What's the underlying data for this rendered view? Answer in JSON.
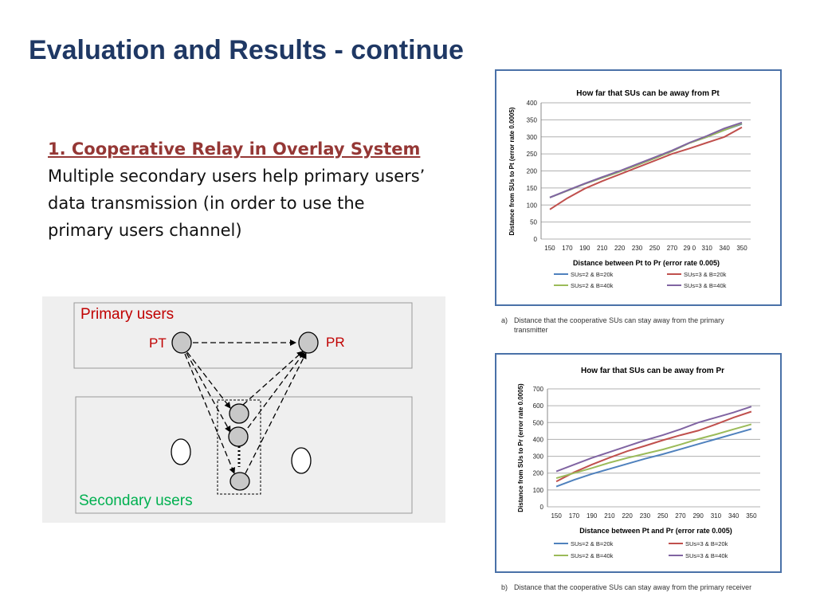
{
  "slide": {
    "title": "Evaluation and Results - continue"
  },
  "bullet": {
    "heading": "1. Cooperative Relay in Overlay System",
    "body": "Multiple secondary users help primary users’ data transmission (in order to use the primary users channel)"
  },
  "diagram": {
    "primary_label": "Primary users",
    "secondary_label": "Secondary users",
    "pt_label": "PT",
    "pr_label": "PR",
    "colors": {
      "primary_text": "#c00000",
      "secondary_text": "#00b050"
    }
  },
  "captions": {
    "a": {
      "label": "a)",
      "text": "Distance that the cooperative SUs can stay away from the primary transmitter"
    },
    "b": {
      "label": "b)",
      "text": "Distance that the cooperative SUs can stay away from the primary receiver"
    }
  },
  "chart_data": [
    {
      "type": "line",
      "title": "How far that SUs can be away from Pt",
      "xlabel": "Distance between Pt to Pr (error rate 0.005)",
      "ylabel": "Distance from SUs to Pt (error rate 0.0005)",
      "categories": [
        "150",
        "170",
        "190",
        "210",
        "220",
        "230",
        "250",
        "270",
        "29 0",
        "310",
        "340",
        "350"
      ],
      "ylim": [
        0,
        400
      ],
      "yticks": [
        0,
        50,
        100,
        150,
        200,
        250,
        300,
        350,
        400
      ],
      "grid": true,
      "legend_position": "bottom",
      "series": [
        {
          "name": "SUs=2 & B=20k",
          "color": "#4f81bd",
          "values": [
            122,
            142,
            162,
            180,
            198,
            217,
            237,
            258,
            282,
            300,
            320,
            338
          ]
        },
        {
          "name": "SUs=3 & B=20k",
          "color": "#c0504d",
          "values": [
            87,
            120,
            148,
            170,
            190,
            210,
            230,
            250,
            266,
            283,
            300,
            328
          ]
        },
        {
          "name": "SUs=2 & B=40k",
          "color": "#9bbb59",
          "values": [
            122,
            142,
            162,
            180,
            198,
            217,
            237,
            258,
            282,
            300,
            320,
            340
          ]
        },
        {
          "name": "SUs=3 & B=40k",
          "color": "#8064a2",
          "values": [
            122,
            143,
            163,
            182,
            200,
            220,
            240,
            260,
            283,
            303,
            325,
            342
          ]
        }
      ]
    },
    {
      "type": "line",
      "title": "How far that SUs can be away from Pr",
      "xlabel": "Distance between Pt and Pr (error rate 0.005)",
      "ylabel": "Distance from SUs to Pr (error rate 0.0005)",
      "categories": [
        "150",
        "170",
        "190",
        "210",
        "220",
        "230",
        "250",
        "270",
        "290",
        "310",
        "340",
        "350"
      ],
      "ylim": [
        0,
        700
      ],
      "yticks": [
        0,
        100,
        200,
        300,
        400,
        500,
        600,
        700
      ],
      "grid": true,
      "legend_position": "bottom",
      "series": [
        {
          "name": "SUs=2 & B=20k",
          "color": "#4f81bd",
          "values": [
            120,
            160,
            195,
            225,
            255,
            285,
            312,
            342,
            372,
            402,
            432,
            462
          ]
        },
        {
          "name": "SUs=3 & B=20k",
          "color": "#c0504d",
          "values": [
            150,
            205,
            250,
            292,
            330,
            362,
            395,
            425,
            452,
            490,
            530,
            565
          ]
        },
        {
          "name": "SUs=2 & B=40k",
          "color": "#9bbb59",
          "values": [
            170,
            200,
            230,
            262,
            290,
            315,
            340,
            370,
            402,
            430,
            460,
            490
          ]
        },
        {
          "name": "SUs=3 & B=40k",
          "color": "#8064a2",
          "values": [
            210,
            250,
            290,
            325,
            360,
            395,
            425,
            460,
            500,
            530,
            560,
            595
          ]
        }
      ]
    }
  ]
}
